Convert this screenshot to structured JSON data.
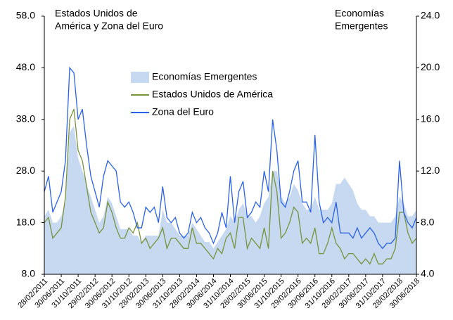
{
  "chart_data": {
    "type": "line",
    "y_label": [
      "Estados Unidos de",
      "América y Zona del Euro"
    ],
    "y2_label": [
      "Economías",
      "Emergentes"
    ],
    "x": [
      "28/02/2011",
      "31/03/2011",
      "30/04/2011",
      "31/05/2011",
      "30/06/2011",
      "31/07/2011",
      "31/08/2011",
      "30/09/2011",
      "31/10/2011",
      "30/11/2011",
      "31/12/2011",
      "31/01/2012",
      "29/02/2012",
      "31/03/2012",
      "30/04/2012",
      "31/05/2012",
      "30/06/2012",
      "31/07/2012",
      "31/08/2012",
      "30/09/2012",
      "31/10/2012",
      "30/11/2012",
      "31/12/2012",
      "31/01/2013",
      "28/02/2013",
      "31/03/2013",
      "30/04/2013",
      "31/05/2013",
      "30/06/2013",
      "31/07/2013",
      "31/08/2013",
      "30/09/2013",
      "31/10/2013",
      "30/11/2013",
      "31/12/2013",
      "31/01/2014",
      "28/02/2014",
      "31/03/2014",
      "30/04/2014",
      "31/05/2014",
      "30/06/2014",
      "31/07/2014",
      "31/08/2014",
      "30/09/2014",
      "31/10/2014",
      "30/11/2014",
      "31/12/2014",
      "31/01/2015",
      "28/02/2015",
      "31/03/2015",
      "30/04/2015",
      "31/05/2015",
      "30/06/2015",
      "31/07/2015",
      "31/08/2015",
      "30/09/2015",
      "31/10/2015",
      "30/11/2015",
      "31/12/2015",
      "31/01/2016",
      "29/02/2016",
      "31/03/2016",
      "30/04/2016",
      "31/05/2016",
      "30/06/2016",
      "31/07/2016",
      "31/08/2016",
      "30/09/2016",
      "31/10/2016",
      "30/11/2016",
      "31/12/2016",
      "31/01/2017",
      "28/02/2017",
      "31/03/2017",
      "30/04/2017",
      "31/05/2017",
      "30/06/2017",
      "31/07/2017",
      "31/08/2017",
      "30/09/2017",
      "31/10/2017",
      "30/11/2017",
      "31/12/2017",
      "31/01/2018",
      "28/02/2018",
      "31/03/2018",
      "30/04/2018",
      "31/05/2018",
      "30/06/2018"
    ],
    "xticks": [
      "28/02/2011",
      "30/06/2011",
      "31/10/2011",
      "29/02/2012",
      "30/06/2012",
      "31/10/2012",
      "28/02/2013",
      "30/06/2013",
      "31/10/2013",
      "28/02/2014",
      "30/06/2014",
      "31/10/2014",
      "28/02/2015",
      "30/06/2015",
      "31/10/2015",
      "29/02/2016",
      "30/06/2016",
      "31/10/2016",
      "28/02/2017",
      "30/06/2017",
      "31/10/2017",
      "28/02/2018",
      "30/06/2018"
    ],
    "ylim": [
      8,
      58
    ],
    "yticks": [
      {
        "value": 8,
        "label": "8.0"
      },
      {
        "value": 18,
        "label": "18.0"
      },
      {
        "value": 28,
        "label": "28.0"
      },
      {
        "value": 38,
        "label": "38.0"
      },
      {
        "value": 48,
        "label": "48.0"
      },
      {
        "value": 58,
        "label": "58.0"
      }
    ],
    "y2lim": [
      4,
      24
    ],
    "y2ticks": [
      {
        "value": 4,
        "label": "4.0"
      },
      {
        "value": 8,
        "label": "8.0"
      },
      {
        "value": 12,
        "label": "12.0"
      },
      {
        "value": 16,
        "label": "16.0"
      },
      {
        "value": 20,
        "label": "20.0"
      },
      {
        "value": 24,
        "label": "24.0"
      }
    ],
    "series": [
      {
        "name": "Economías Emergentes",
        "color": "#c6d9f1",
        "axis": "y2",
        "kind": "area",
        "values": [
          8.5,
          9,
          8,
          8,
          8.5,
          9.5,
          15,
          15.5,
          13,
          12,
          11,
          10,
          9,
          8,
          8.5,
          10,
          9.5,
          8.5,
          7.5,
          7.5,
          7.5,
          7,
          7,
          6.5,
          7,
          7,
          7,
          7,
          9,
          8,
          8,
          7.5,
          7,
          7,
          7,
          8,
          7.5,
          7,
          6.5,
          6.5,
          6,
          6.5,
          7,
          7.5,
          8.5,
          8,
          9,
          9.5,
          8.5,
          8.5,
          8,
          8.5,
          9.5,
          10,
          12,
          12,
          10,
          9.5,
          10,
          11,
          10.5,
          9.5,
          9,
          9,
          10,
          9,
          9,
          9,
          9.5,
          11,
          11,
          11.5,
          11,
          10.5,
          9.5,
          9,
          9,
          8.5,
          8.5,
          8,
          8,
          8,
          8,
          8.5,
          10,
          9.5,
          8.5,
          8.5,
          9
        ]
      },
      {
        "name": "Estados Unidos de América",
        "color": "#77933c",
        "kind": "line",
        "values": [
          18,
          19,
          15,
          16,
          17,
          23,
          38,
          40,
          32,
          30,
          25,
          20,
          18,
          16,
          17,
          22,
          20,
          17,
          15,
          15,
          17,
          16,
          18,
          14,
          15,
          13,
          14,
          15,
          17,
          13,
          15,
          15,
          14,
          13,
          13,
          17,
          14,
          14,
          13,
          12,
          11,
          13,
          12,
          15,
          16,
          13,
          19,
          19,
          13,
          15,
          14,
          13,
          17,
          13,
          28,
          24,
          15,
          16,
          18,
          21,
          20,
          14,
          15,
          14,
          17,
          12,
          12,
          14,
          17,
          14,
          13,
          11,
          12,
          12,
          11,
          10,
          11,
          10,
          12,
          10,
          10,
          11,
          11,
          13,
          20,
          20,
          16,
          14,
          15
        ]
      },
      {
        "name": "Zona del Euro",
        "color": "#2a62e6",
        "kind": "line",
        "values": [
          24,
          27,
          20,
          22,
          24,
          30,
          48,
          47,
          38,
          40,
          33,
          27,
          24,
          21,
          27,
          30,
          29,
          28,
          22,
          21,
          22,
          20,
          17,
          17,
          21,
          20,
          21,
          18,
          25,
          19,
          18,
          19,
          16,
          15,
          16,
          20,
          18,
          19,
          17,
          16,
          14,
          16,
          20,
          17,
          27,
          18,
          24,
          26,
          19,
          20,
          22,
          21,
          28,
          24,
          38,
          32,
          22,
          21,
          24,
          28,
          30,
          22,
          22,
          20,
          35,
          22,
          18,
          19,
          18,
          22,
          16,
          16,
          16,
          15,
          17,
          15,
          16,
          17,
          16,
          14,
          13,
          14,
          14,
          15,
          30,
          20,
          18,
          17,
          19
        ]
      }
    ]
  }
}
